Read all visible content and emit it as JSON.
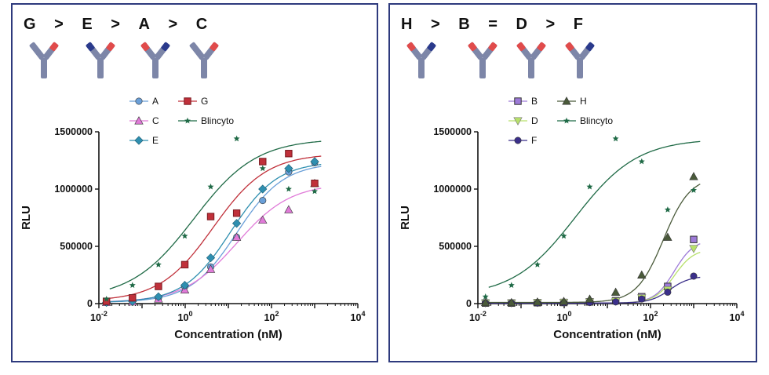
{
  "rankings": [
    {
      "tokens": [
        "G",
        ">",
        "E",
        ">",
        "A",
        ">",
        "C"
      ]
    },
    {
      "tokens": [
        "H",
        ">",
        "B",
        "=",
        "D",
        ">",
        "F"
      ]
    }
  ],
  "colors": {
    "frame": "#2e3a7d",
    "antibody_body": "#7d86a8",
    "antibody_dark": "#2a3a8c",
    "antibody_red": "#e14b4b"
  },
  "chart_data": [
    {
      "type": "scatter",
      "xlabel": "Concentration (nM)",
      "ylabel": "RLU",
      "xscale": "log",
      "xlim": [
        0.01,
        10000
      ],
      "ylim": [
        0,
        1500000
      ],
      "xticks": [
        "10-2",
        "100",
        "102",
        "104"
      ],
      "yticks": [
        "0",
        "500000",
        "1000000",
        "1500000"
      ],
      "legend": {
        "placement": "top",
        "entries": [
          "A",
          "C",
          "E",
          "G",
          "Blincyto"
        ]
      },
      "series": [
        {
          "name": "A",
          "color": "#6a9fd8",
          "marker": "circle",
          "x": [
            0.015,
            0.06,
            0.24,
            0.98,
            3.9,
            15.6,
            62.5,
            250,
            1000
          ],
          "y": [
            10000,
            20000,
            50000,
            150000,
            320000,
            580000,
            900000,
            1150000,
            1230000
          ]
        },
        {
          "name": "C",
          "color": "#e07ad8",
          "marker": "triangle-up",
          "x": [
            0.015,
            0.06,
            0.24,
            0.98,
            3.9,
            15.6,
            62.5,
            250,
            1000
          ],
          "y": [
            10000,
            15000,
            40000,
            120000,
            300000,
            580000,
            730000,
            820000,
            1050000
          ]
        },
        {
          "name": "E",
          "color": "#2f8fb0",
          "marker": "diamond",
          "x": [
            0.015,
            0.06,
            0.24,
            0.98,
            3.9,
            15.6,
            62.5,
            250,
            1000
          ],
          "y": [
            10000,
            20000,
            60000,
            160000,
            400000,
            700000,
            1000000,
            1180000,
            1240000
          ]
        },
        {
          "name": "G",
          "color": "#c0303a",
          "marker": "square",
          "x": [
            0.015,
            0.06,
            0.24,
            0.98,
            3.9,
            15.6,
            62.5,
            250,
            1000
          ],
          "y": [
            20000,
            50000,
            150000,
            340000,
            760000,
            790000,
            1240000,
            1310000,
            1050000
          ]
        },
        {
          "name": "Blincyto",
          "color": "#1f6a46",
          "marker": "star",
          "x": [
            0.015,
            0.06,
            0.24,
            0.98,
            3.9,
            15.6,
            62.5,
            250,
            1000
          ],
          "y": [
            40000,
            160000,
            340000,
            590000,
            1020000,
            1440000,
            1180000,
            1000000,
            980000
          ]
        }
      ]
    },
    {
      "type": "scatter",
      "xlabel": "Concentration (nM)",
      "ylabel": "RLU",
      "xscale": "log",
      "xlim": [
        0.01,
        10000
      ],
      "ylim": [
        0,
        1500000
      ],
      "xticks": [
        "10-2",
        "100",
        "102",
        "104"
      ],
      "yticks": [
        "0",
        "500000",
        "1000000",
        "1500000"
      ],
      "legend": {
        "placement": "top",
        "entries": [
          "B",
          "D",
          "F",
          "H",
          "Blincyto"
        ]
      },
      "series": [
        {
          "name": "B",
          "color": "#9d7ad8",
          "marker": "square",
          "x": [
            0.015,
            0.06,
            0.24,
            0.98,
            3.9,
            15.6,
            62.5,
            250,
            1000
          ],
          "y": [
            5000,
            5000,
            8000,
            10000,
            15000,
            25000,
            60000,
            150000,
            560000
          ]
        },
        {
          "name": "D",
          "color": "#b7e06b",
          "marker": "triangle-down",
          "x": [
            0.015,
            0.06,
            0.24,
            0.98,
            3.9,
            15.6,
            62.5,
            250,
            1000
          ],
          "y": [
            5000,
            5000,
            8000,
            10000,
            15000,
            20000,
            50000,
            120000,
            480000
          ]
        },
        {
          "name": "F",
          "color": "#3b2f8a",
          "marker": "circle",
          "x": [
            0.015,
            0.06,
            0.24,
            0.98,
            3.9,
            15.6,
            62.5,
            250,
            1000
          ],
          "y": [
            5000,
            5000,
            5000,
            8000,
            10000,
            15000,
            40000,
            100000,
            240000
          ]
        },
        {
          "name": "H",
          "color": "#4a5a3a",
          "marker": "triangle-up",
          "x": [
            0.015,
            0.06,
            0.24,
            0.98,
            3.9,
            15.6,
            62.5,
            250,
            1000
          ],
          "y": [
            10000,
            10000,
            15000,
            20000,
            40000,
            100000,
            250000,
            580000,
            1110000
          ]
        },
        {
          "name": "Blincyto",
          "color": "#1f6a46",
          "marker": "star",
          "x": [
            0.015,
            0.06,
            0.24,
            0.98,
            3.9,
            15.6,
            62.5,
            250,
            1000
          ],
          "y": [
            60000,
            160000,
            340000,
            590000,
            1020000,
            1440000,
            1240000,
            820000,
            990000
          ]
        }
      ]
    }
  ]
}
